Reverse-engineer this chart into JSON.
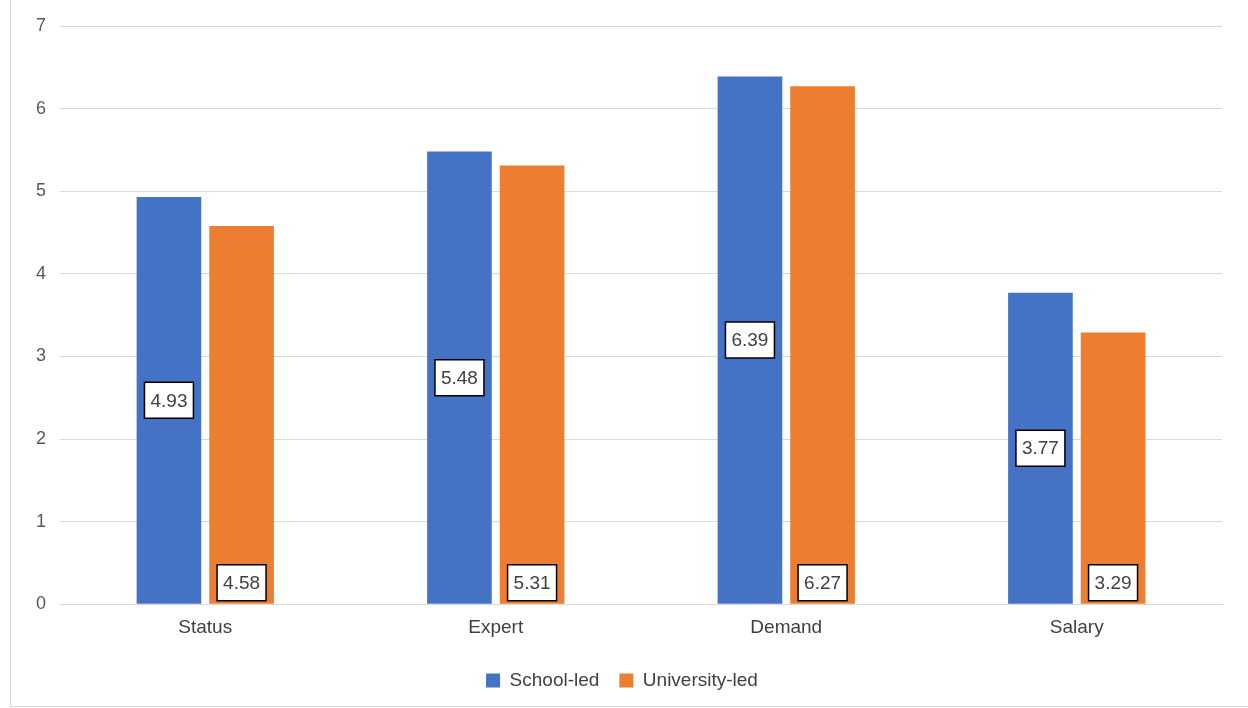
{
  "chart_data": {
    "type": "bar",
    "categories": [
      "Status",
      "Expert",
      "Demand",
      "Salary"
    ],
    "series": [
      {
        "name": "School-led",
        "color": "#4472c4",
        "values": [
          4.93,
          5.48,
          6.39,
          3.77
        ]
      },
      {
        "name": "University-led",
        "color": "#ed7d31",
        "values": [
          4.58,
          5.31,
          6.27,
          3.29
        ]
      }
    ],
    "ylim": [
      0,
      7
    ],
    "yticks": [
      0,
      1,
      2,
      3,
      4,
      5,
      6,
      7
    ],
    "grid": "y",
    "legend": "bottom",
    "data_labels": true
  }
}
